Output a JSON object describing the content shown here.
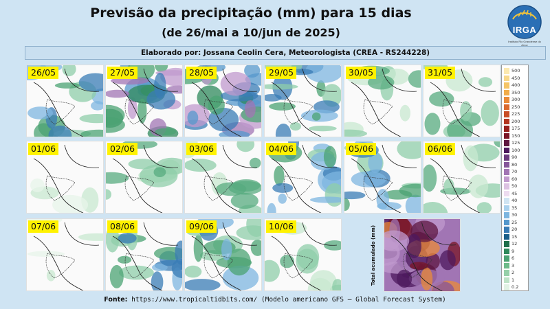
{
  "header": {
    "title": "Previsão da precipitação (mm) para 15 dias",
    "subtitle": "(de 26/mai a 10/jun de 2025)",
    "author": "Elaborado por: Jossana Ceolin Cera, Meteorologista (CREA - RS244228)"
  },
  "logo": {
    "name": "IRGA",
    "caption": "Instituto Rio Grandense do Arroz"
  },
  "panels": [
    {
      "date": "26/05",
      "intensity": "moderate"
    },
    {
      "date": "27/05",
      "intensity": "heavy"
    },
    {
      "date": "28/05",
      "intensity": "heavy"
    },
    {
      "date": "29/05",
      "intensity": "moderate"
    },
    {
      "date": "30/05",
      "intensity": "light"
    },
    {
      "date": "31/05",
      "intensity": "light"
    },
    {
      "date": "01/06",
      "intensity": "dry"
    },
    {
      "date": "02/06",
      "intensity": "light"
    },
    {
      "date": "03/06",
      "intensity": "light"
    },
    {
      "date": "04/06",
      "intensity": "moderate"
    },
    {
      "date": "05/06",
      "intensity": "moderate"
    },
    {
      "date": "06/06",
      "intensity": "light"
    },
    {
      "date": "07/06",
      "intensity": "dry"
    },
    {
      "date": "08/06",
      "intensity": "moderate"
    },
    {
      "date": "09/06",
      "intensity": "moderate"
    },
    {
      "date": "10/06",
      "intensity": "light"
    }
  ],
  "total": {
    "label": "Total acumulado (mm)"
  },
  "legend": {
    "values": [
      "500",
      "450",
      "400",
      "350",
      "300",
      "250",
      "225",
      "200",
      "175",
      "150",
      "125",
      "100",
      "90",
      "80",
      "70",
      "60",
      "50",
      "45",
      "40",
      "35",
      "30",
      "25",
      "20",
      "15",
      "12",
      "9",
      "6",
      "3",
      "2",
      "1",
      "0.2"
    ],
    "colors": [
      "#fbe9b0",
      "#f8d98a",
      "#f5c566",
      "#f1ad4a",
      "#e98b39",
      "#db6a2e",
      "#c94d26",
      "#b33520",
      "#97201e",
      "#7a1526",
      "#5e1640",
      "#4d1a5e",
      "#6a3a7e",
      "#85569a",
      "#a175b4",
      "#c09acd",
      "#dcc2e2",
      "#eddcf0",
      "#cfe4f3",
      "#a9d1ee",
      "#7db6e0",
      "#5598cc",
      "#3a7cb5",
      "#1b5f8a",
      "#1e6e4a",
      "#2f8a5c",
      "#4ba373",
      "#6dbb8b",
      "#96d0a9",
      "#bee3c7",
      "#e1f2e4"
    ]
  },
  "footer": {
    "label": "Fonte:",
    "text": " https://www.tropicaltidbits.com/ (Modelo americano GFS – Global Forecast System)"
  }
}
